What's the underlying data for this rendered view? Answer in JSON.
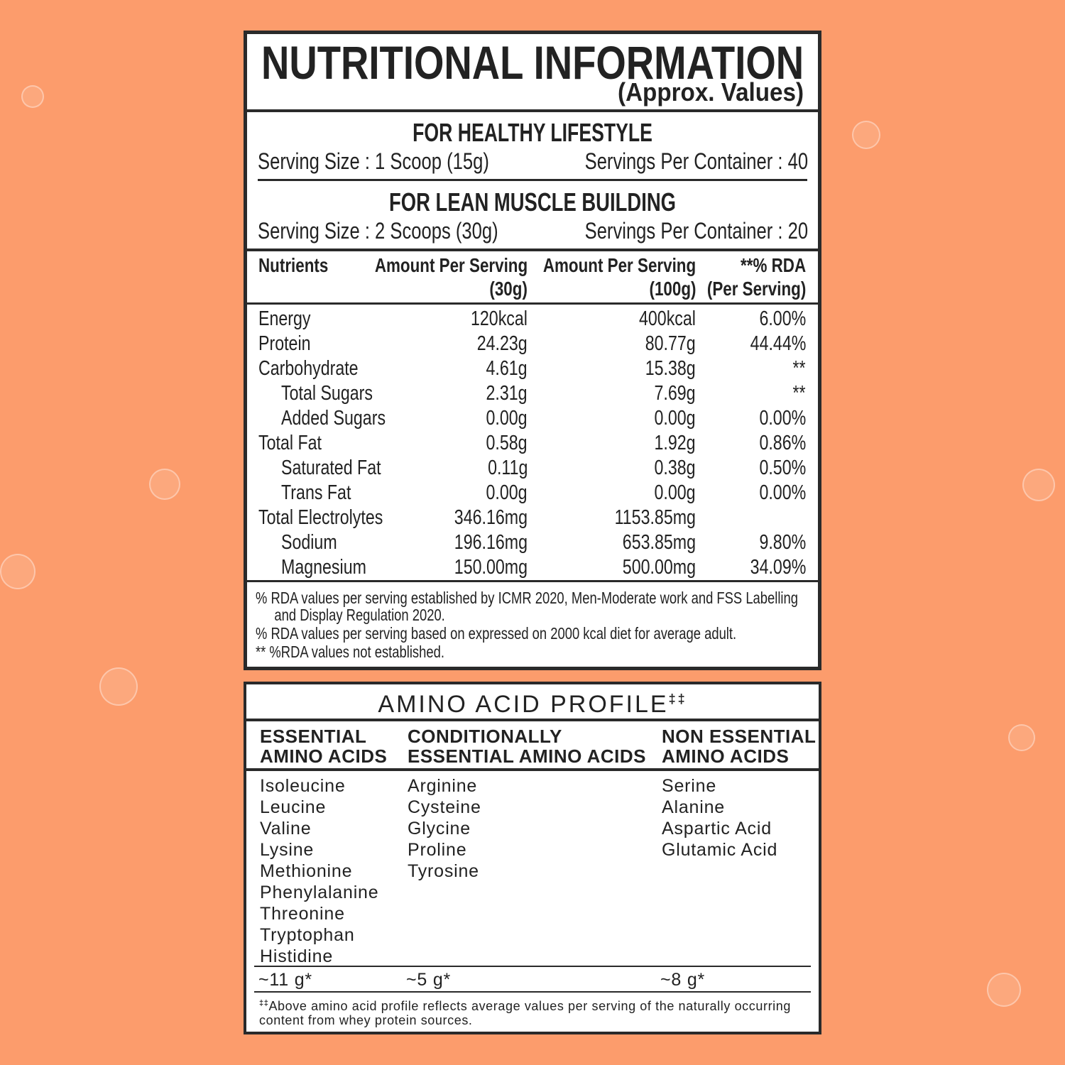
{
  "nutrition": {
    "title": "NUTRITIONAL INFORMATION",
    "subtitle": "(Approx. Values)",
    "servings": [
      {
        "heading": "FOR HEALTHY LIFESTYLE",
        "serving_size": "Serving Size : 1 Scoop (15g)",
        "servings_per_container": "Servings Per Container : 40"
      },
      {
        "heading": "FOR LEAN MUSCLE BUILDING",
        "serving_size": "Serving Size : 2 Scoops (30g)",
        "servings_per_container": "Servings Per Container : 20"
      }
    ],
    "table": {
      "header": [
        [
          "Nutrients"
        ],
        [
          "Amount Per Serving",
          "(30g)"
        ],
        [
          "Amount Per Serving",
          "(100g)"
        ],
        [
          "**% RDA",
          "(Per Serving)"
        ]
      ],
      "rows": [
        {
          "name": "Energy",
          "indent": false,
          "cells": [
            "120kcal",
            "400kcal",
            "6.00%"
          ]
        },
        {
          "name": "Protein",
          "indent": false,
          "cells": [
            "24.23g",
            "80.77g",
            "44.44%"
          ]
        },
        {
          "name": "Carbohydrate",
          "indent": false,
          "cells": [
            "4.61g",
            "15.38g",
            "**"
          ]
        },
        {
          "name": "Total Sugars",
          "indent": true,
          "cells": [
            "2.31g",
            "7.69g",
            "**"
          ]
        },
        {
          "name": "Added Sugars",
          "indent": true,
          "cells": [
            "0.00g",
            "0.00g",
            "0.00%"
          ]
        },
        {
          "name": "Total Fat",
          "indent": false,
          "cells": [
            "0.58g",
            "1.92g",
            "0.86%"
          ]
        },
        {
          "name": "Saturated Fat",
          "indent": true,
          "cells": [
            "0.11g",
            "0.38g",
            "0.50%"
          ]
        },
        {
          "name": "Trans Fat",
          "indent": true,
          "cells": [
            "0.00g",
            "0.00g",
            "0.00%"
          ]
        },
        {
          "name": "Total Electrolytes",
          "indent": false,
          "cells": [
            "346.16mg",
            "1153.85mg"
          ]
        },
        {
          "name": "Sodium",
          "indent": true,
          "cells": [
            "196.16mg",
            "653.85mg",
            "9.80%"
          ]
        },
        {
          "name": "Magnesium",
          "indent": true,
          "cells": [
            "150.00mg",
            "500.00mg",
            "34.09%"
          ]
        }
      ]
    },
    "footnotes": [
      "% RDA values per serving established by ICMR 2020, Men-Moderate work and FSS Labelling and Display Regulation 2020.",
      "% RDA values per serving based on expressed on 2000 kcal diet for average adult.",
      "** %RDA values not established."
    ]
  },
  "amino": {
    "title": "AMINO ACID PROFILE",
    "title_mark": "‡‡",
    "columns": [
      {
        "heading": [
          "ESSENTIAL",
          "AMINO ACIDS"
        ],
        "items": [
          "Isoleucine",
          "Leucine",
          "Valine",
          "Lysine",
          "Methionine",
          "Phenylalanine",
          "Threonine",
          "Tryptophan",
          "Histidine"
        ],
        "total": "~11 g*"
      },
      {
        "heading": [
          "CONDITIONALLY",
          "ESSENTIAL AMINO ACIDS"
        ],
        "items": [
          "Arginine",
          "Cysteine",
          "Glycine",
          "Proline",
          "Tyrosine"
        ],
        "total": "~5 g*"
      },
      {
        "heading": [
          "NON ESSENTIAL",
          "AMINO ACIDS"
        ],
        "items": [
          "Serine",
          "Alanine",
          "Aspartic Acid",
          "Glutamic Acid"
        ],
        "total": "~8 g*"
      }
    ],
    "note_mark": "‡‡",
    "note": "Above amino acid profile reflects average values per serving of the naturally occurring content from whey protein sources."
  }
}
